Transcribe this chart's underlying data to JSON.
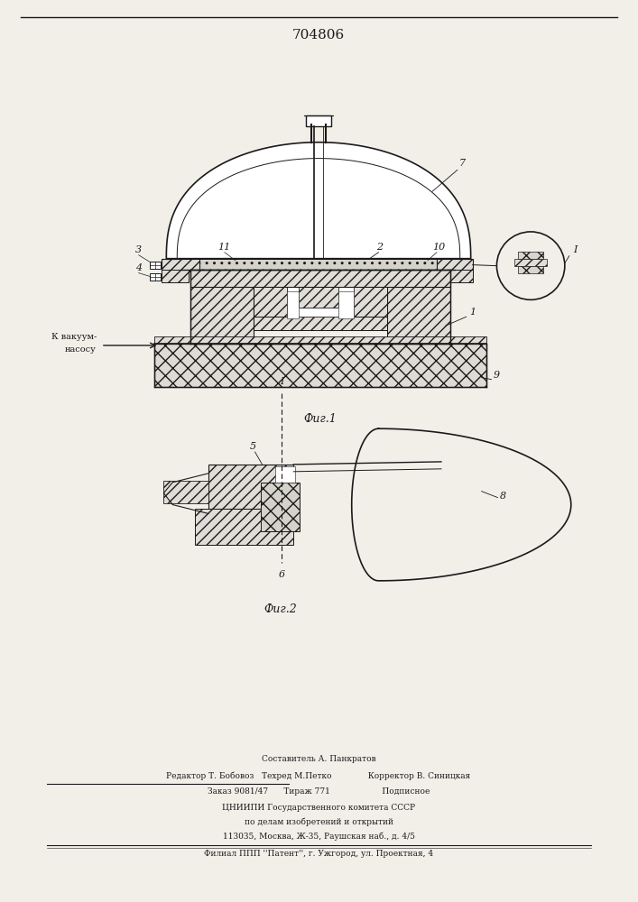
{
  "patent_number": "704806",
  "fig1_caption": "Фиг.1",
  "fig2_caption": "Фиг.2",
  "bg_color": "#f2efe9",
  "line_color": "#1a1a1a",
  "footer_lines": [
    "Составитель А. Панкратов",
    "Редактор Т. Бобовоз   Техред М.Петко              Корректор В. Синицкая",
    "Заказ 9081/47      Тираж 771                    Подписное",
    "ЦНИИПИ Государственного комитета СССР",
    "по делам изобретений и открытий",
    "113035, Москва, Ж-35, Раушская наб., д. 4/5",
    "Филиал ППП ''Патент'', г. Ужгород, ул. Проектная, 4"
  ]
}
